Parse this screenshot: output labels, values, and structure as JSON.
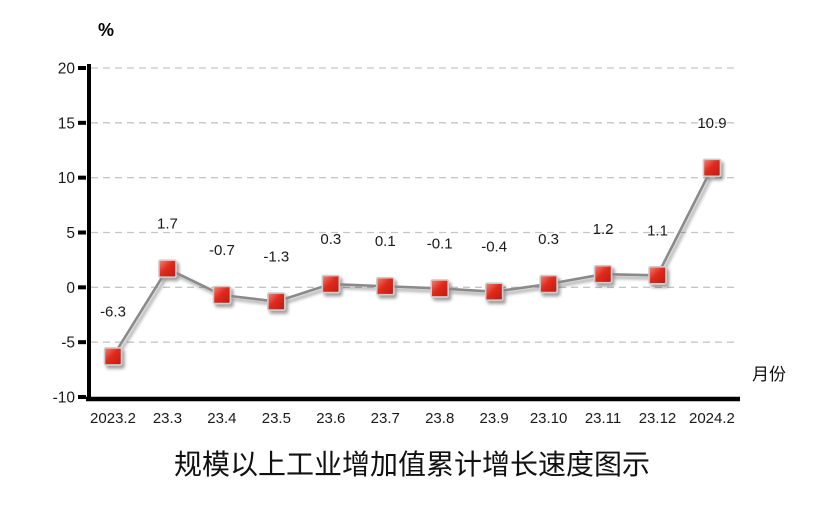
{
  "chart_data": {
    "type": "line",
    "title": "规模以上工业增加值累计增长速度图示",
    "ylabel": "%",
    "xlabel": "月份",
    "categories": [
      "2023.2",
      "23.3",
      "23.4",
      "23.5",
      "23.6",
      "23.7",
      "23.8",
      "23.9",
      "23.10",
      "23.11",
      "23.12",
      "2024.2"
    ],
    "values": [
      -6.3,
      1.7,
      -0.7,
      -1.3,
      0.3,
      0.1,
      -0.1,
      -0.4,
      0.3,
      1.2,
      1.1,
      10.9
    ],
    "data_labels": [
      "-6.3",
      "1.7",
      "-0.7",
      "-1.3",
      "0.3",
      "0.1",
      "-0.1",
      "-0.4",
      "0.3",
      "1.2",
      "1.1",
      "10.9"
    ],
    "ylim": [
      -10,
      20
    ],
    "yticks": [
      20,
      15,
      10,
      5,
      0,
      -5,
      -10
    ],
    "grid": "horizontal-dashed",
    "legend": "none",
    "marker": "square",
    "marker_color": "#e02b1e",
    "marker_color_light": "#f5857a",
    "marker_color_dark": "#b81c10",
    "marker_border_color": "#cccccc",
    "line_color": "#8a8a8a",
    "gridline_color": "#c6c6c6",
    "axis_color": "#000000"
  }
}
